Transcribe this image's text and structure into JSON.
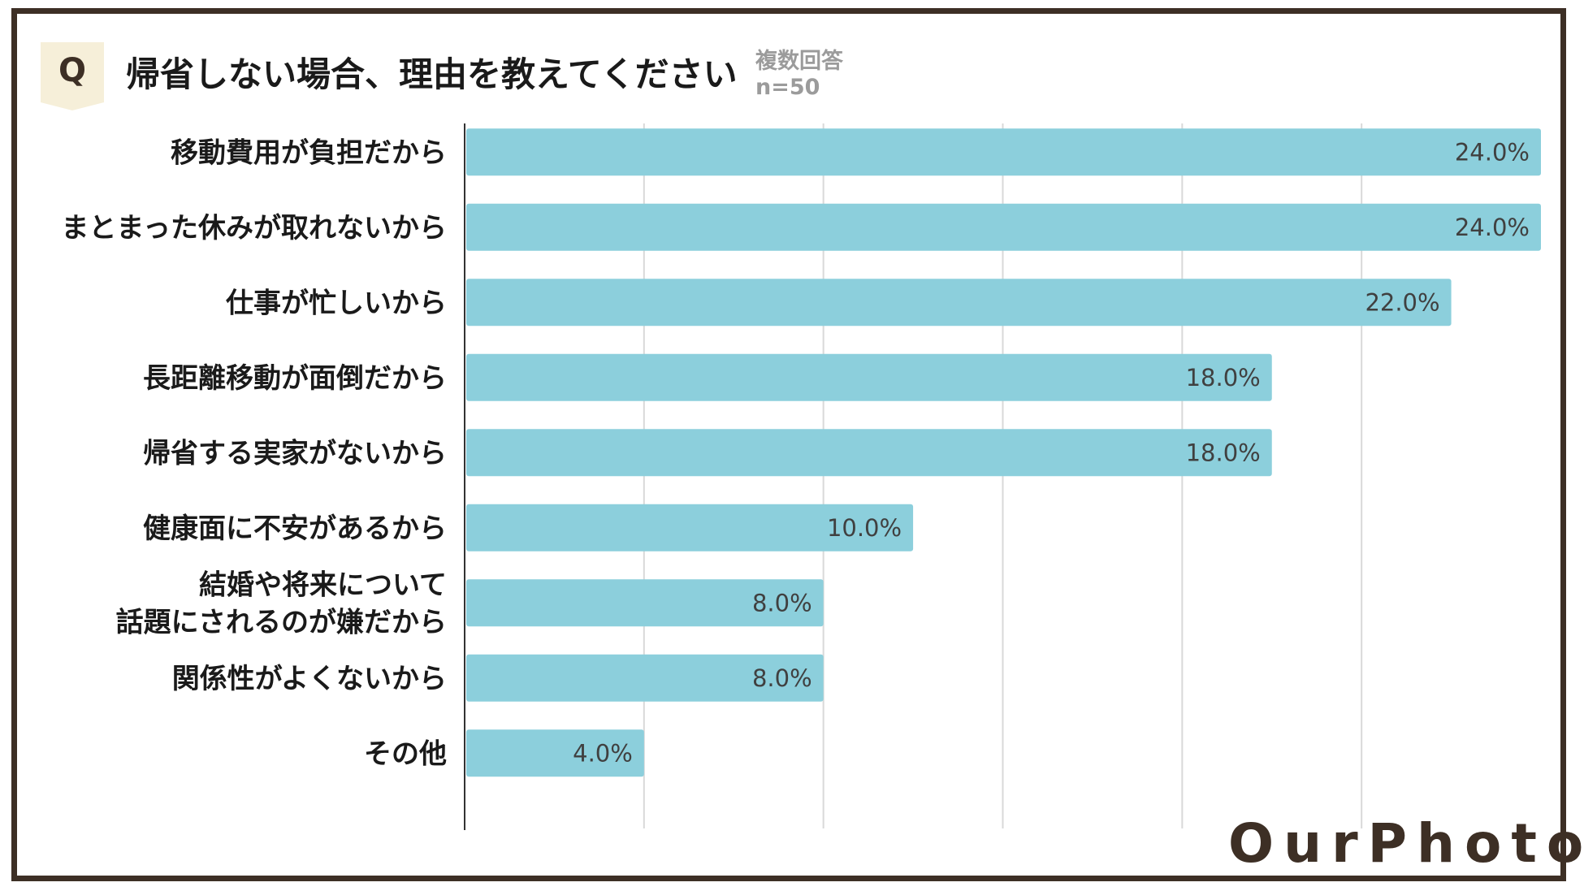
{
  "header": {
    "q_label": "Q",
    "title": "帰省しない場合、理由を教えてください",
    "note_line1": "複数回答",
    "note_line2": "n=50"
  },
  "logo": {
    "text": "OurPhoto"
  },
  "colors": {
    "bar": "#8ccfdc",
    "frame": "#3d2f25",
    "grid": "#d9d9d9",
    "label": "#404040"
  },
  "chart_data": {
    "type": "bar",
    "orientation": "horizontal",
    "title": "帰省しない場合、理由を教えてください",
    "xlim": [
      0,
      24
    ],
    "grid": true,
    "categories": [
      "移動費用が負担だから",
      "まとまった休みが取れないから",
      "仕事が忙しいから",
      "長距離移動が面倒だから",
      "帰省する実家がないから",
      "健康面に不安があるから",
      "結婚や将来について\n話題にされるのが嫌だから",
      "関係性がよくないから",
      "その他"
    ],
    "values": [
      24.0,
      24.0,
      22.0,
      18.0,
      18.0,
      10.0,
      8.0,
      8.0,
      4.0
    ],
    "value_labels": [
      "24.0%",
      "24.0%",
      "22.0%",
      "18.0%",
      "18.0%",
      "10.0%",
      "8.0%",
      "8.0%",
      "4.0%"
    ]
  }
}
